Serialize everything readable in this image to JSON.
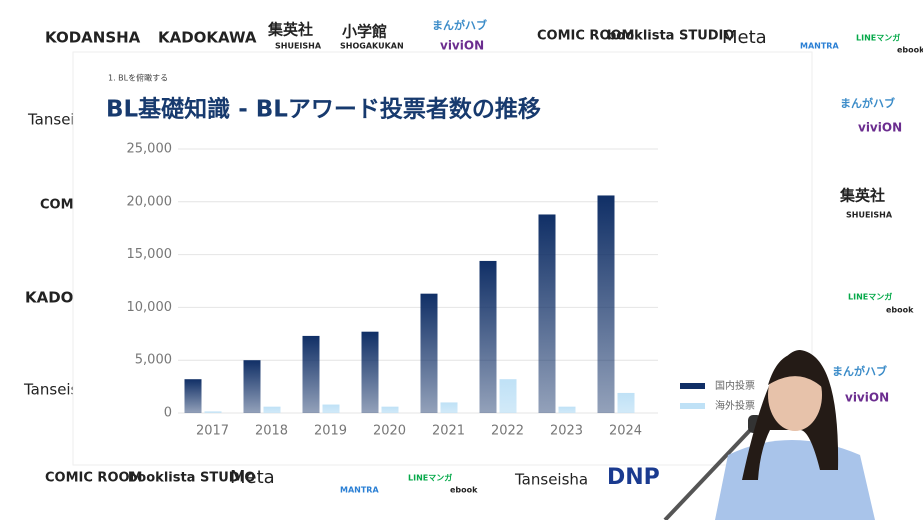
{
  "background_logos": [
    "KODANSHA",
    "KADOKAWA",
    "集英社",
    "SHUEISHA",
    "小学館",
    "SHOGAKUKAN",
    "まんがハブ",
    "viviON",
    "COMIC ROOM",
    "booklista STUDIO",
    "Meta",
    "MANTRA",
    "LINEマンガ",
    "ebook",
    "Tanseisha",
    "COMIC ROOM",
    "KADOKAWA",
    "Tanseisha",
    "まんがハブ",
    "viviON",
    "集英社",
    "SHUEISHA",
    "LINEマンガ",
    "ebook",
    "まんがハブ",
    "viviON",
    "COMIC ROOM",
    "booklista STUDIO",
    "Meta",
    "MANTRA",
    "LINEマンガ",
    "ebook",
    "Tanseisha",
    "DNP"
  ],
  "slide": {
    "section": "1. BLを俯瞰する"
  },
  "chart_data": {
    "type": "bar",
    "title": "BL基礎知識 - BLアワード投票者数の推移",
    "categories": [
      "2017",
      "2018",
      "2019",
      "2020",
      "2021",
      "2022",
      "2023",
      "2024"
    ],
    "series": [
      {
        "name": "国内投票",
        "color": "#102f66",
        "values": [
          3200,
          5000,
          7300,
          7700,
          11300,
          14400,
          18800,
          20600
        ]
      },
      {
        "name": "海外投票",
        "color": "#bfe1f6",
        "values": [
          150,
          600,
          800,
          600,
          1000,
          3200,
          600,
          1900
        ]
      }
    ],
    "ylim": [
      0,
      25000
    ],
    "yticks": [
      0,
      {
        "value": 5000,
        "label": "5,000"
      },
      {
        "value": 10000,
        "label": "10,000"
      },
      {
        "value": 15000,
        "label": "15,000"
      },
      {
        "value": 20000,
        "label": "20,000"
      },
      {
        "value": 25000,
        "label": "25,000"
      }
    ],
    "grid": true
  }
}
